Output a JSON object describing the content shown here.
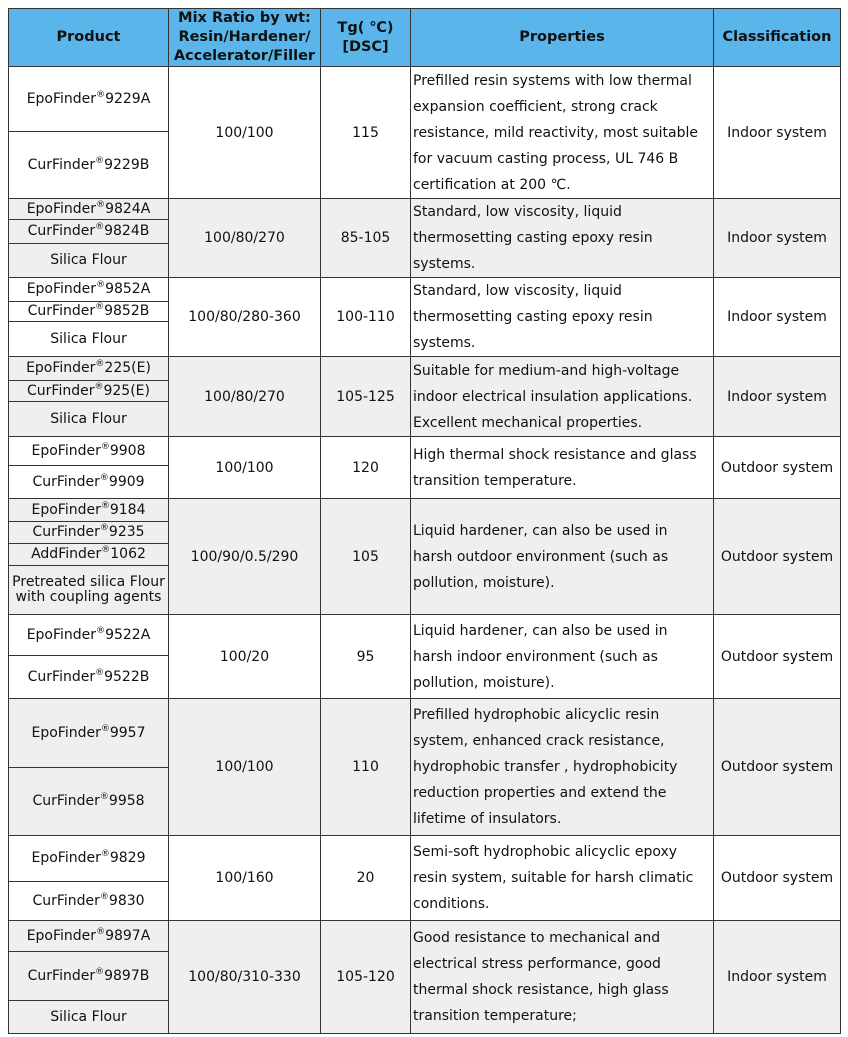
{
  "headers": {
    "product": "Product",
    "mix_ratio": "Mix Ratio by wt: Resin/Hardener/ Accelerator/Filler",
    "tg": "Tg( ℃) [DSC]",
    "properties": "Properties",
    "classification": "Classification"
  },
  "reg_mark": "®",
  "rows": [
    {
      "products": [
        [
          "EpoFinder",
          "9229A"
        ],
        [
          "CurFinder",
          "9229B"
        ]
      ],
      "ratio": "100/100",
      "tg": "115",
      "properties": "Prefilled resin systems with low thermal expansion coefficient, strong crack resistance, mild reactivity, most suitable for vacuum casting process, UL 746 B certification at 200 ℃.",
      "classification": "Indoor system"
    },
    {
      "products": [
        [
          "EpoFinder",
          "9824A"
        ],
        [
          "CurFinder",
          "9824B"
        ],
        [
          "Silica Flour",
          ""
        ]
      ],
      "ratio": "100/80/270",
      "tg": "85-105",
      "properties": "Standard, low viscosity, liquid thermosetting casting epoxy resin systems.",
      "classification": "Indoor system"
    },
    {
      "products": [
        [
          "EpoFinder",
          "9852A"
        ],
        [
          "CurFinder",
          "9852B"
        ],
        [
          "Silica Flour",
          ""
        ]
      ],
      "ratio": "100/80/280-360",
      "tg": "100-110",
      "properties": "Standard, low viscosity, liquid thermosetting casting epoxy resin systems.",
      "classification": "Indoor system"
    },
    {
      "products": [
        [
          "EpoFinder",
          "225(E)"
        ],
        [
          "CurFinder",
          "925(E)"
        ],
        [
          "Silica Flour",
          ""
        ]
      ],
      "ratio": "100/80/270",
      "tg": "105-125",
      "properties": "Suitable for medium-and high-voltage indoor electrical insulation applications. Excellent mechanical properties.",
      "classification": "Indoor system"
    },
    {
      "products": [
        [
          "EpoFinder",
          "9908"
        ],
        [
          "CurFinder",
          "9909"
        ]
      ],
      "ratio": "100/100",
      "tg": "120",
      "properties": "High thermal shock resistance and glass transition temperature.",
      "classification": "Outdoor system"
    },
    {
      "products": [
        [
          "EpoFinder",
          "9184"
        ],
        [
          "CurFinder",
          "9235"
        ],
        [
          "AddFinder",
          "1062"
        ],
        [
          "Pretreated silica Flour with coupling agents",
          ""
        ]
      ],
      "ratio": "100/90/0.5/290",
      "tg": "105",
      "properties": "Liquid hardener, can also be used in harsh outdoor environment (such as pollution, moisture).",
      "classification": "Outdoor system"
    },
    {
      "products": [
        [
          "EpoFinder",
          "9522A"
        ],
        [
          "CurFinder",
          "9522B"
        ]
      ],
      "ratio": "100/20",
      "tg": "95",
      "properties": "Liquid hardener, can also be used in harsh indoor environment (such as pollution, moisture).",
      "classification": "Outdoor system"
    },
    {
      "products": [
        [
          "EpoFinder",
          "9957"
        ],
        [
          "CurFinder",
          "9958"
        ]
      ],
      "ratio": "100/100",
      "tg": "110",
      "properties": "Prefilled hydrophobic alicyclic resin system, enhanced crack resistance, hydrophobic transfer , hydrophobicity reduction properties and extend the lifetime of insulators.",
      "classification": "Outdoor system"
    },
    {
      "products": [
        [
          "EpoFinder",
          "9829"
        ],
        [
          "CurFinder",
          "9830"
        ]
      ],
      "ratio": "100/160",
      "tg": "20",
      "properties": "Semi-soft hydrophobic alicyclic epoxy resin system, suitable for harsh climatic conditions.",
      "classification": "Outdoor system"
    },
    {
      "products": [
        [
          "EpoFinder",
          "9897A"
        ],
        [
          "CurFinder",
          "9897B"
        ],
        [
          "Silica Flour",
          ""
        ]
      ],
      "ratio": "100/80/310-330",
      "tg": "105-120",
      "properties": "Good resistance to mechanical and electrical stress performance, good thermal shock resistance, high glass transition temperature;",
      "classification": "Indoor system"
    }
  ],
  "colors": {
    "header_bg": "#5ab6ea",
    "alt_row_bg": "#efefef",
    "border": "#333333"
  }
}
